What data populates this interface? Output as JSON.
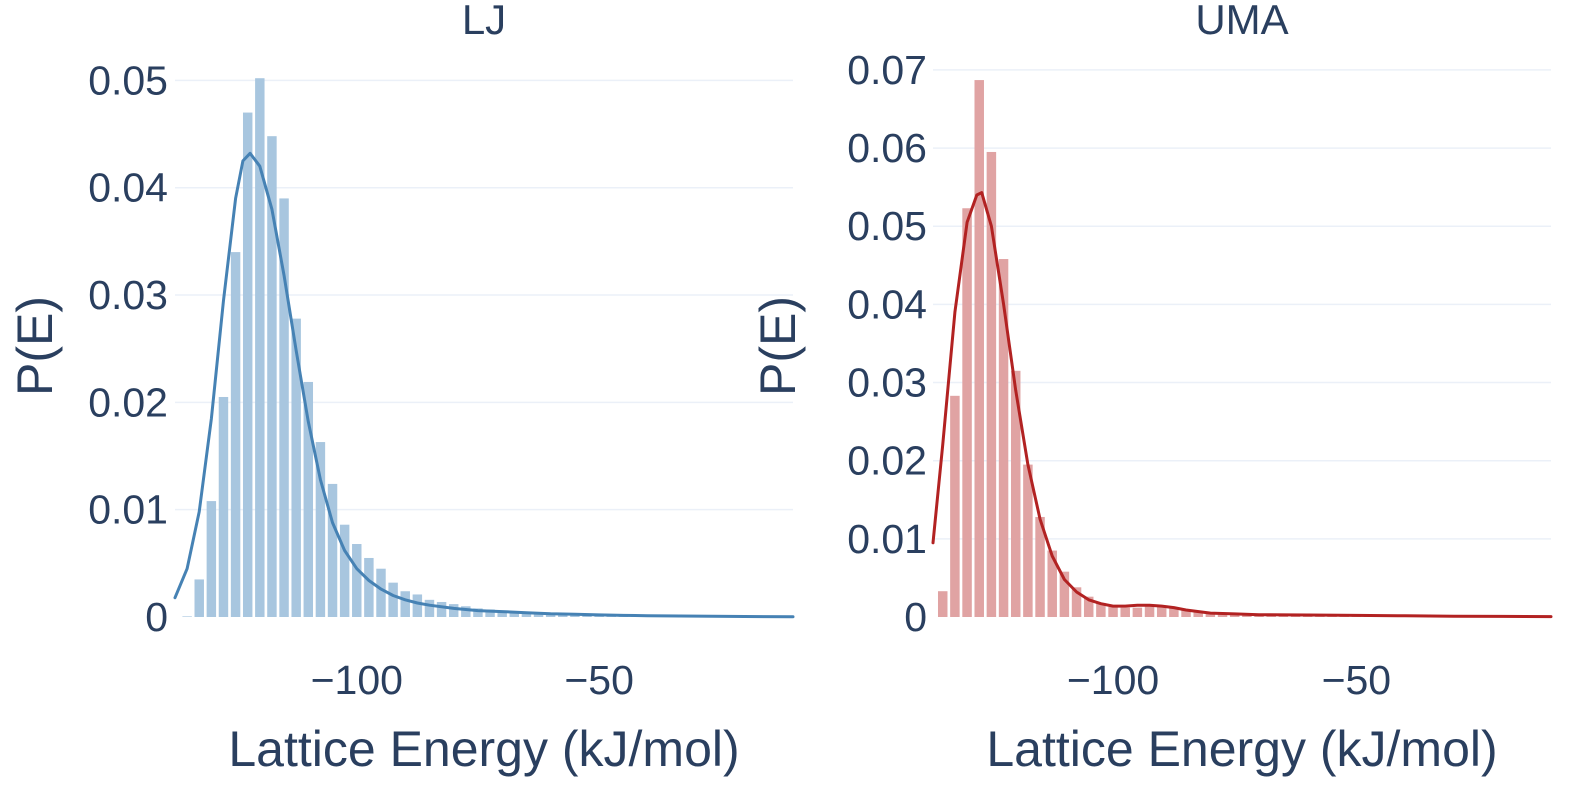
{
  "chart_data": [
    {
      "type": "bar",
      "title": "LJ",
      "xlabel": "Lattice Energy (kJ/mol)",
      "ylabel": "P(E)",
      "x_ticks": [
        -100,
        -50
      ],
      "x_tick_labels": [
        "−100",
        "−50"
      ],
      "y_ticks": [
        0,
        0.01,
        0.02,
        0.03,
        0.04,
        0.05
      ],
      "y_tick_labels": [
        "0",
        "0.01",
        "0.02",
        "0.03",
        "0.04",
        "0.05"
      ],
      "xlim": [
        -137.5,
        -10
      ],
      "ylim": [
        0,
        0.0505
      ],
      "grid": true,
      "bar_color": "#a8c6df",
      "line_color": "#4682b4",
      "bin_width": 2.5,
      "histogram": {
        "name": "histogram",
        "x": [
          -135,
          -132.5,
          -130,
          -127.5,
          -125,
          -122.5,
          -120,
          -117.5,
          -115,
          -112.5,
          -110,
          -107.5,
          -105,
          -102.5,
          -100,
          -97.5,
          -95,
          -92.5,
          -90,
          -87.5,
          -85,
          -82.5,
          -80,
          -77.5,
          -75,
          -72.5,
          -70,
          -67.5,
          -65,
          -62.5,
          -60,
          -57.5,
          -55,
          -52.5,
          -50,
          -47.5,
          -45,
          -42.5
        ],
        "values": [
          0.0,
          0.0035,
          0.0108,
          0.0205,
          0.034,
          0.047,
          0.0502,
          0.0448,
          0.039,
          0.0278,
          0.0219,
          0.0163,
          0.0124,
          0.0086,
          0.0068,
          0.0055,
          0.0045,
          0.0032,
          0.0024,
          0.0021,
          0.0016,
          0.0014,
          0.0012,
          0.001,
          0.0008,
          0.0007,
          0.0006,
          0.0005,
          0.0004,
          0.0004,
          0.0003,
          0.0003,
          0.0002,
          0.0002,
          0.0002,
          0.0001,
          0.0001,
          0.0001
        ]
      },
      "kde": {
        "name": "KDE",
        "x": [
          -137.5,
          -135,
          -132.5,
          -130,
          -127.5,
          -125,
          -123.5,
          -122,
          -120,
          -117.5,
          -115,
          -112.5,
          -110,
          -107.5,
          -105,
          -102.5,
          -100,
          -97.5,
          -95,
          -92.5,
          -90,
          -87.5,
          -85,
          -80,
          -75,
          -70,
          -65,
          -60,
          -55,
          -50,
          -45,
          -40,
          -30,
          -20,
          -10
        ],
        "values": [
          0.0018,
          0.0045,
          0.0098,
          0.0185,
          0.0295,
          0.039,
          0.0425,
          0.0432,
          0.042,
          0.038,
          0.0318,
          0.0248,
          0.0182,
          0.0128,
          0.0088,
          0.0062,
          0.0045,
          0.0034,
          0.0026,
          0.002,
          0.0016,
          0.0013,
          0.0011,
          0.0008,
          0.0006,
          0.0005,
          0.0004,
          0.0003,
          0.00025,
          0.0002,
          0.00015,
          0.00012,
          8e-05,
          5e-05,
          3e-05
        ]
      }
    },
    {
      "type": "bar",
      "title": "UMA",
      "xlabel": "Lattice Energy (kJ/mol)",
      "ylabel": "P(E)",
      "x_ticks": [
        -100,
        -50
      ],
      "x_tick_labels": [
        "−100",
        "−50"
      ],
      "y_ticks": [
        0,
        0.01,
        0.02,
        0.03,
        0.04,
        0.05,
        0.06,
        0.07
      ],
      "y_tick_labels": [
        "0",
        "0.01",
        "0.02",
        "0.03",
        "0.04",
        "0.05",
        "0.06",
        "0.07"
      ],
      "xlim": [
        -137,
        -10
      ],
      "ylim": [
        0,
        0.0705
      ],
      "grid": true,
      "bar_color": "#e0a3a3",
      "line_color": "#b22222",
      "bin_width": 2.5,
      "histogram": {
        "name": "histogram",
        "x": [
          -135,
          -132.5,
          -130,
          -127.5,
          -125,
          -122.5,
          -120,
          -117.5,
          -115,
          -112.5,
          -110,
          -107.5,
          -105,
          -102.5,
          -100,
          -97.5,
          -95,
          -92.5,
          -90,
          -87.5,
          -85,
          -82.5,
          -80,
          -77.5,
          -75,
          -72.5,
          -70,
          -67.5,
          -65,
          -62.5,
          -60,
          -57.5,
          -55,
          -52.5,
          -50,
          -47.5,
          -45,
          -42.5
        ],
        "values": [
          0.0033,
          0.0283,
          0.0523,
          0.0687,
          0.0595,
          0.0458,
          0.0315,
          0.0195,
          0.0128,
          0.0085,
          0.0058,
          0.0038,
          0.0026,
          0.0018,
          0.0013,
          0.0012,
          0.0012,
          0.0014,
          0.0013,
          0.0012,
          0.0009,
          0.0006,
          0.0004,
          0.0003,
          0.0003,
          0.0002,
          0.0002,
          0.0002,
          0.0001,
          0.0001,
          0.0001,
          0.0001,
          0.0001,
          0.0001,
          0.0001,
          0.0001,
          0.0001,
          0.0001
        ]
      },
      "kde": {
        "name": "KDE",
        "x": [
          -137,
          -135,
          -132.5,
          -130,
          -128,
          -127,
          -125,
          -122.5,
          -120,
          -117.5,
          -115,
          -112.5,
          -110,
          -107.5,
          -105,
          -102.5,
          -100,
          -97.5,
          -95,
          -92.5,
          -90,
          -87.5,
          -85,
          -80,
          -75,
          -70,
          -60,
          -50,
          -40,
          -30,
          -20,
          -10
        ],
        "values": [
          0.0095,
          0.022,
          0.039,
          0.0505,
          0.054,
          0.0543,
          0.05,
          0.04,
          0.029,
          0.0195,
          0.0125,
          0.0078,
          0.0048,
          0.0032,
          0.0022,
          0.0017,
          0.0014,
          0.0014,
          0.0015,
          0.0015,
          0.0014,
          0.0012,
          0.0009,
          0.0005,
          0.0004,
          0.0003,
          0.00025,
          0.0002,
          0.00015,
          0.0001,
          8e-05,
          5e-05
        ]
      }
    }
  ]
}
